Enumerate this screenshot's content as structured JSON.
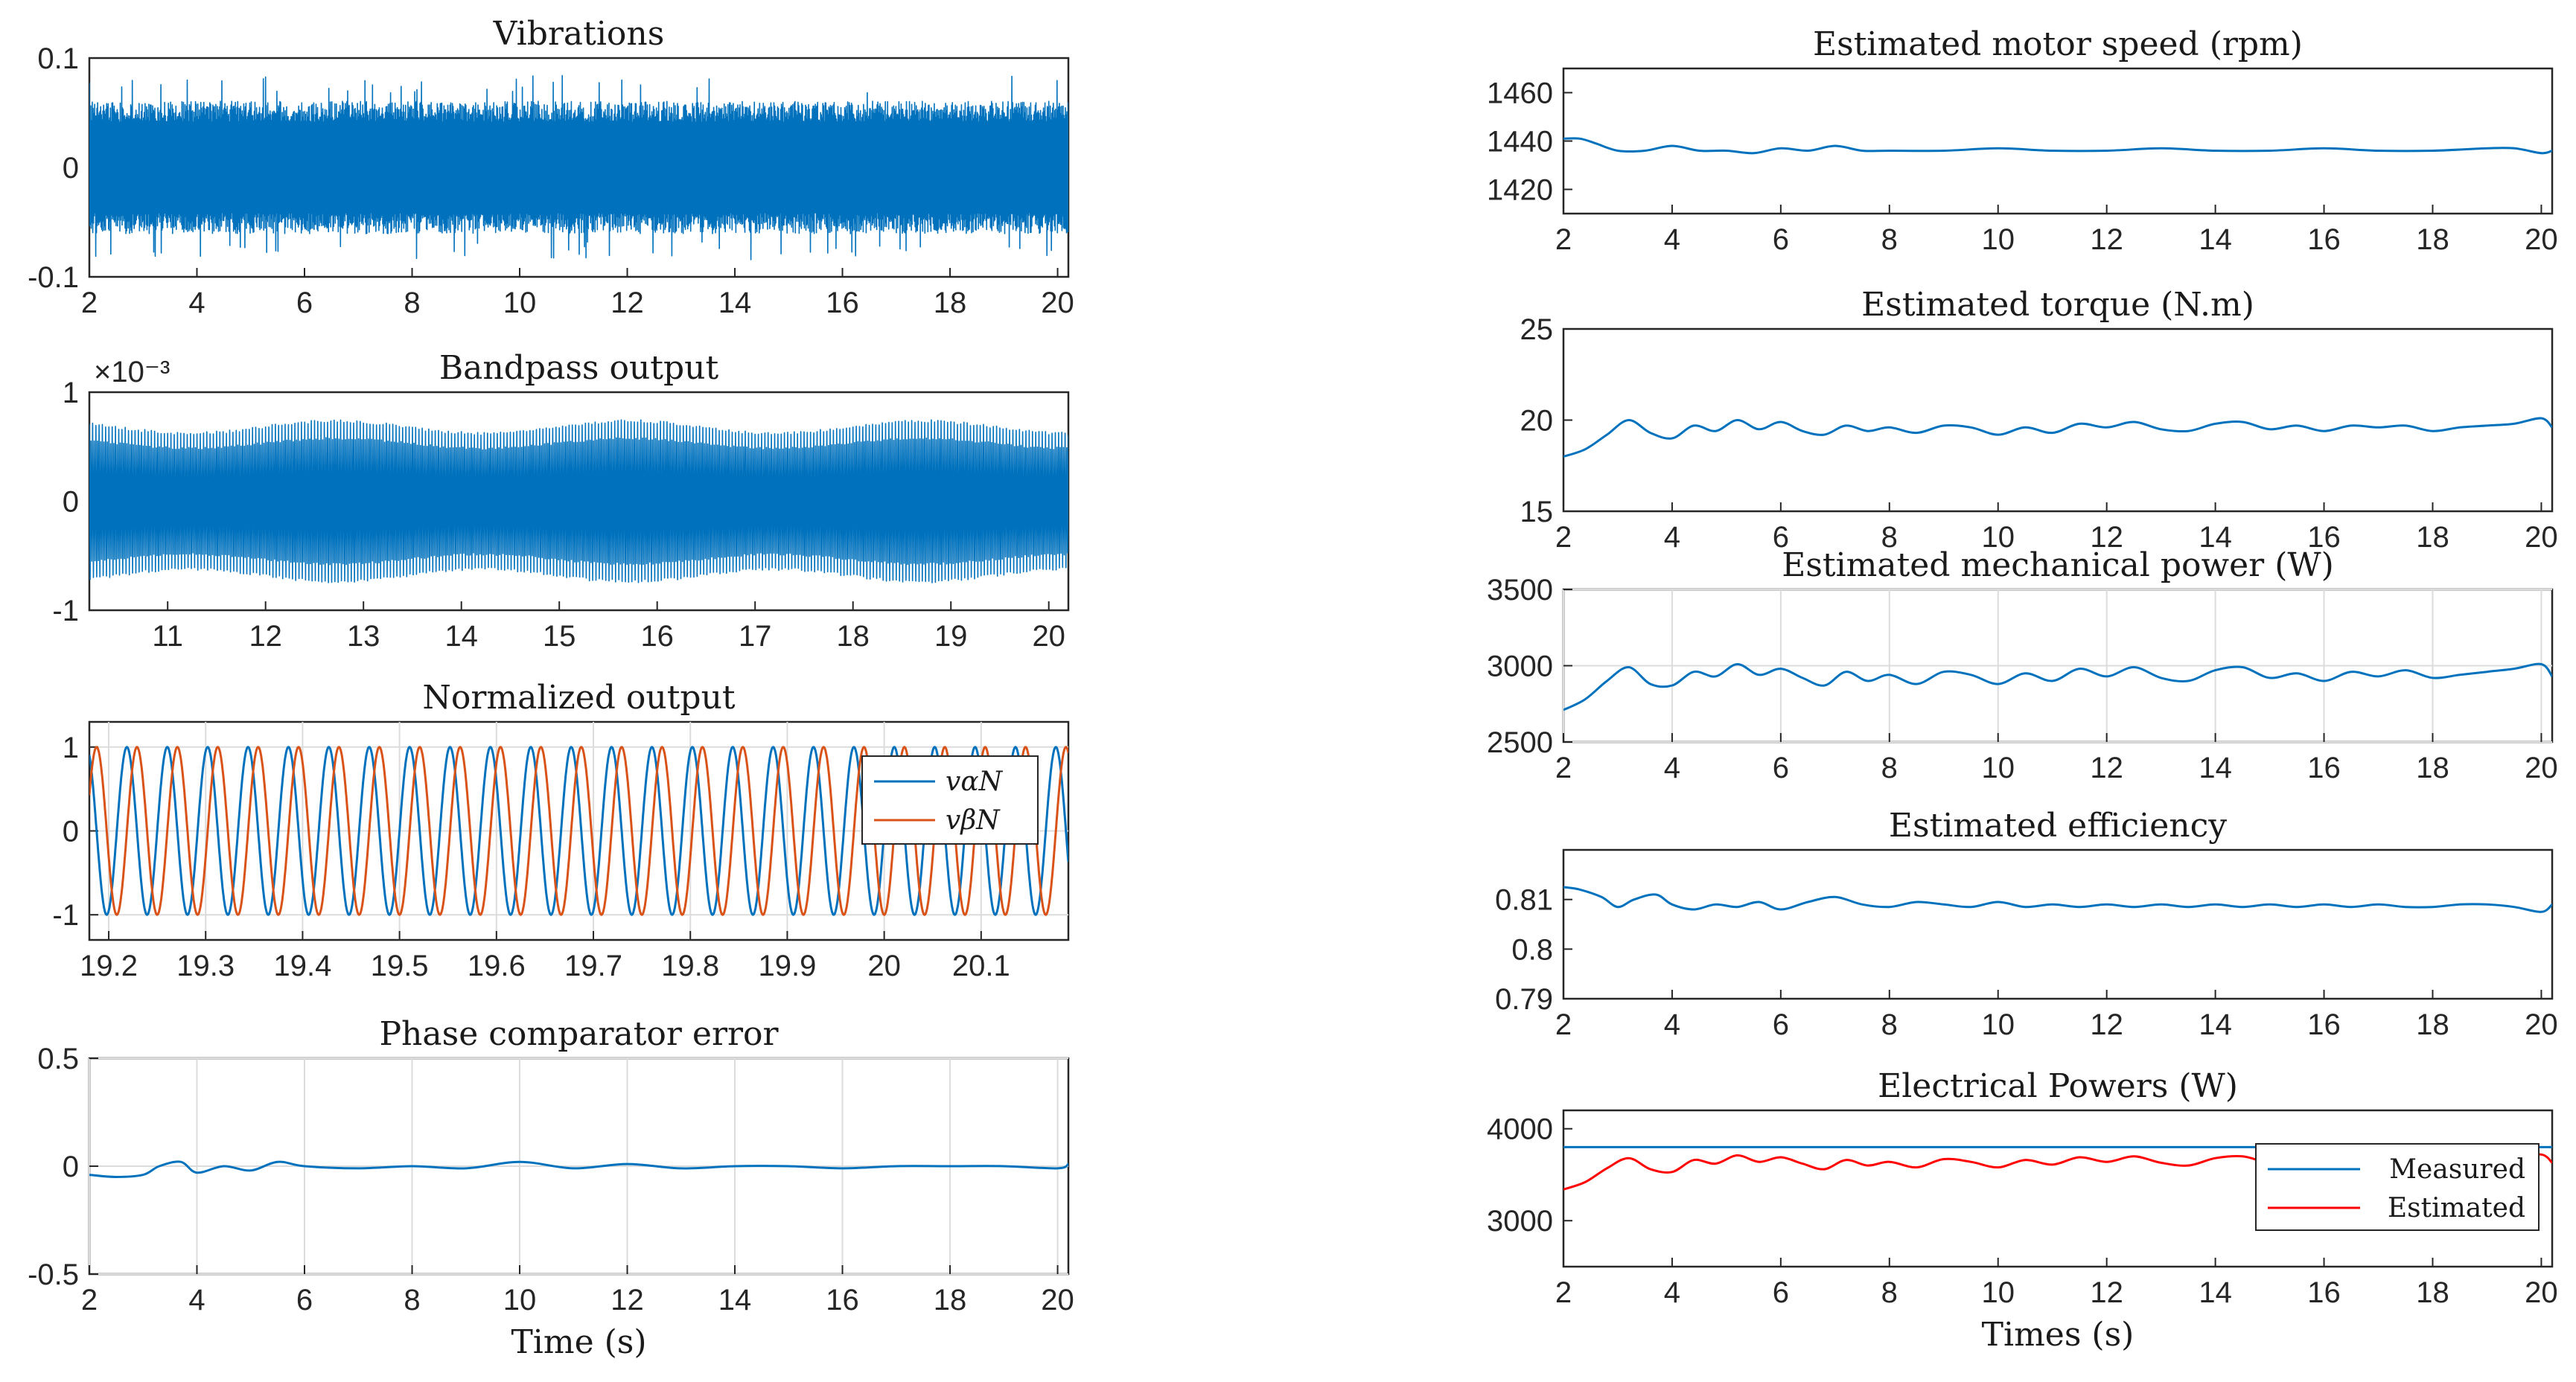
{
  "colors": {
    "blue": "#0072BD",
    "orange": "#D95319",
    "red": "#FF0000",
    "axis": "#262626",
    "grid": "#dcdcdc"
  },
  "chart_data": [
    {
      "id": "vibrations",
      "type": "line",
      "title": "Vibrations",
      "xlabel": "",
      "ylabel": "",
      "xlim": [
        2,
        20.2
      ],
      "ylim": [
        -0.1,
        0.1
      ],
      "xticks": [
        "2",
        "4",
        "6",
        "8",
        "10",
        "12",
        "14",
        "16",
        "18",
        "20"
      ],
      "yticks": [
        "0.1",
        "0",
        "-0.1"
      ],
      "grid": false,
      "series": [
        {
          "color": "#0072BD",
          "signal": "dense-noise",
          "amplitude": 0.055,
          "peak_amplitude": 0.085
        }
      ]
    },
    {
      "id": "bandpass",
      "type": "line",
      "title": "Bandpass output",
      "xlabel": "",
      "ylabel": "",
      "y_exponent": "×10⁻³",
      "xlim": [
        10.2,
        20.2
      ],
      "ylim": [
        -1,
        1
      ],
      "xticks": [
        "11",
        "12",
        "13",
        "14",
        "15",
        "16",
        "17",
        "18",
        "19",
        "20"
      ],
      "yticks": [
        "1",
        "0",
        "-1"
      ],
      "grid": false,
      "series": [
        {
          "color": "#0072BD",
          "signal": "dense-oscillation",
          "amplitude": 0.72
        }
      ]
    },
    {
      "id": "normalized",
      "type": "line",
      "title": "Normalized output",
      "xlabel": "",
      "ylabel": "",
      "xlim": [
        19.18,
        20.19
      ],
      "ylim": [
        -1.3,
        1.3
      ],
      "xticks": [
        "19.2",
        "19.3",
        "19.4",
        "19.5",
        "19.6",
        "19.7",
        "19.8",
        "19.9",
        "20",
        "20.1"
      ],
      "yticks": [
        "1",
        "0",
        "-1"
      ],
      "grid": true,
      "legend": "top-right",
      "series": [
        {
          "name": "vαN",
          "color": "#0072BD",
          "signal": "sine",
          "frequency_hz": 24,
          "phase": 0
        },
        {
          "name": "vβN",
          "color": "#D95319",
          "signal": "sine",
          "frequency_hz": 24,
          "phase": -1.5708
        }
      ]
    },
    {
      "id": "phase_error",
      "type": "line",
      "title": "Phase comparator error",
      "xlabel": "Time (s)",
      "ylabel": "",
      "xlim": [
        2,
        20.2
      ],
      "ylim": [
        -0.5,
        0.5
      ],
      "xticks": [
        "2",
        "4",
        "6",
        "8",
        "10",
        "12",
        "14",
        "16",
        "18",
        "20"
      ],
      "yticks": [
        "0.5",
        "0",
        "-0.5"
      ],
      "grid": true,
      "series": [
        {
          "color": "#0072BD",
          "x": [
            2,
            2.5,
            3,
            3.3,
            3.7,
            4,
            4.5,
            5,
            5.5,
            6,
            7,
            8,
            9,
            10,
            11,
            12,
            13,
            14,
            15,
            16,
            17,
            18,
            19,
            20,
            20.2
          ],
          "y": [
            -0.04,
            -0.05,
            -0.04,
            0.0,
            0.02,
            -0.03,
            0.0,
            -0.02,
            0.02,
            0.0,
            -0.01,
            0.0,
            -0.01,
            0.02,
            -0.01,
            0.01,
            -0.01,
            0.0,
            0.0,
            -0.01,
            0.0,
            0.0,
            0.0,
            -0.01,
            0.01
          ]
        }
      ]
    },
    {
      "id": "speed",
      "type": "line",
      "title": "Estimated motor speed (rpm)",
      "xlabel": "",
      "ylabel": "",
      "xlim": [
        2,
        20.2
      ],
      "ylim": [
        1410,
        1470
      ],
      "xticks": [
        "2",
        "4",
        "6",
        "8",
        "10",
        "12",
        "14",
        "16",
        "18",
        "20"
      ],
      "yticks": [
        "1460",
        "1440",
        "1420"
      ],
      "grid": false,
      "series": [
        {
          "color": "#0072BD",
          "x": [
            2,
            2.3,
            2.6,
            3,
            3.5,
            4,
            4.5,
            5,
            5.5,
            6,
            6.5,
            7,
            7.5,
            8,
            9,
            10,
            11,
            12,
            13,
            14,
            15,
            16,
            17,
            18,
            19,
            19.5,
            20,
            20.2
          ],
          "y": [
            1441,
            1441,
            1439,
            1436,
            1436,
            1438,
            1436,
            1436,
            1435,
            1437,
            1436,
            1438,
            1436,
            1436,
            1436,
            1437,
            1436,
            1436,
            1437,
            1436,
            1436,
            1437,
            1436,
            1436,
            1437,
            1437,
            1435,
            1436
          ]
        }
      ]
    },
    {
      "id": "torque",
      "type": "line",
      "title": "Estimated torque (N.m)",
      "xlabel": "",
      "ylabel": "",
      "xlim": [
        2,
        20.2
      ],
      "ylim": [
        15,
        25
      ],
      "xticks": [
        "2",
        "4",
        "6",
        "8",
        "10",
        "12",
        "14",
        "16",
        "18",
        "20"
      ],
      "yticks": [
        "25",
        "20",
        "15"
      ],
      "grid": false,
      "series": [
        {
          "color": "#0072BD",
          "x": [
            2,
            2.4,
            2.8,
            3.2,
            3.6,
            4,
            4.4,
            4.8,
            5.2,
            5.6,
            6,
            6.4,
            6.8,
            7.2,
            7.6,
            8,
            8.5,
            9,
            9.5,
            10,
            10.5,
            11,
            11.5,
            12,
            12.5,
            13,
            13.5,
            14,
            14.5,
            15,
            15.5,
            16,
            16.5,
            17,
            17.5,
            18,
            18.5,
            19,
            19.5,
            20,
            20.2
          ],
          "y": [
            18.0,
            18.4,
            19.2,
            20.0,
            19.3,
            19.0,
            19.7,
            19.4,
            20.0,
            19.5,
            19.9,
            19.4,
            19.2,
            19.7,
            19.4,
            19.6,
            19.3,
            19.7,
            19.6,
            19.2,
            19.6,
            19.3,
            19.8,
            19.6,
            19.9,
            19.5,
            19.4,
            19.8,
            19.9,
            19.5,
            19.7,
            19.4,
            19.7,
            19.6,
            19.7,
            19.4,
            19.6,
            19.7,
            19.8,
            20.1,
            19.6
          ]
        }
      ]
    },
    {
      "id": "mech_power",
      "type": "line",
      "title": "Estimated mechanical power (W)",
      "xlabel": "",
      "ylabel": "",
      "xlim": [
        2,
        20.2
      ],
      "ylim": [
        2500,
        3500
      ],
      "xticks": [
        "2",
        "4",
        "6",
        "8",
        "10",
        "12",
        "14",
        "16",
        "18",
        "20"
      ],
      "yticks": [
        "3500",
        "3000",
        "2500"
      ],
      "grid": true,
      "series": [
        {
          "color": "#0072BD",
          "x": [
            2,
            2.4,
            2.8,
            3.2,
            3.6,
            4,
            4.4,
            4.8,
            5.2,
            5.6,
            6,
            6.4,
            6.8,
            7.2,
            7.6,
            8,
            8.5,
            9,
            9.5,
            10,
            10.5,
            11,
            11.5,
            12,
            12.5,
            13,
            13.5,
            14,
            14.5,
            15,
            15.5,
            16,
            16.5,
            17,
            17.5,
            18,
            18.5,
            19,
            19.5,
            20,
            20.2
          ],
          "y": [
            2710,
            2780,
            2900,
            2990,
            2880,
            2870,
            2960,
            2930,
            3010,
            2940,
            2980,
            2920,
            2870,
            2960,
            2900,
            2940,
            2880,
            2960,
            2940,
            2880,
            2950,
            2900,
            2980,
            2930,
            2990,
            2920,
            2900,
            2970,
            2990,
            2920,
            2950,
            2900,
            2960,
            2930,
            2970,
            2920,
            2940,
            2960,
            2980,
            3010,
            2930
          ]
        }
      ]
    },
    {
      "id": "efficiency",
      "type": "line",
      "title": "Estimated efficiency",
      "xlabel": "",
      "ylabel": "",
      "xlim": [
        2,
        20.2
      ],
      "ylim": [
        0.79,
        0.82
      ],
      "xticks": [
        "2",
        "4",
        "6",
        "8",
        "10",
        "12",
        "14",
        "16",
        "18",
        "20"
      ],
      "yticks": [
        "0.81",
        "0.8",
        "0.79"
      ],
      "grid": false,
      "series": [
        {
          "color": "#0072BD",
          "x": [
            2,
            2.3,
            2.7,
            3,
            3.3,
            3.7,
            4,
            4.4,
            4.8,
            5.2,
            5.6,
            6,
            6.5,
            7,
            7.5,
            8,
            8.5,
            9,
            9.5,
            10,
            10.5,
            11,
            11.5,
            12,
            12.5,
            13,
            13.5,
            14,
            14.5,
            15,
            15.5,
            16,
            16.5,
            17,
            17.5,
            18,
            18.5,
            19,
            19.5,
            20,
            20.2
          ],
          "y": [
            0.8125,
            0.812,
            0.8105,
            0.8085,
            0.81,
            0.811,
            0.809,
            0.808,
            0.809,
            0.8085,
            0.8095,
            0.808,
            0.8095,
            0.8105,
            0.809,
            0.8085,
            0.8095,
            0.809,
            0.8085,
            0.8095,
            0.8085,
            0.809,
            0.8085,
            0.809,
            0.8085,
            0.809,
            0.8085,
            0.809,
            0.8085,
            0.809,
            0.8085,
            0.809,
            0.8085,
            0.809,
            0.8085,
            0.8085,
            0.809,
            0.809,
            0.8085,
            0.8075,
            0.809
          ]
        }
      ]
    },
    {
      "id": "electrical",
      "type": "line",
      "title": "Electrical Powers (W)",
      "xlabel": "Times (s)",
      "ylabel": "",
      "xlim": [
        2,
        20.2
      ],
      "ylim": [
        2500,
        4200
      ],
      "xticks": [
        "2",
        "4",
        "6",
        "8",
        "10",
        "12",
        "14",
        "16",
        "18",
        "20"
      ],
      "yticks": [
        "4000",
        "3000"
      ],
      "grid": false,
      "legend": "top-right",
      "series": [
        {
          "name": "Measured",
          "color": "#0072BD",
          "x": [
            2,
            20.2
          ],
          "y": [
            3800,
            3800
          ]
        },
        {
          "name": "Estimated",
          "color": "#FF0000",
          "x": [
            2,
            2.4,
            2.8,
            3.2,
            3.6,
            4,
            4.4,
            4.8,
            5.2,
            5.6,
            6,
            6.4,
            6.8,
            7.2,
            7.6,
            8,
            8.5,
            9,
            9.5,
            10,
            10.5,
            11,
            11.5,
            12,
            12.5,
            13,
            13.5,
            14,
            14.5,
            15,
            15.5,
            16,
            16.5,
            17,
            17.5,
            18,
            18.5,
            19,
            19.5,
            20,
            20.2
          ],
          "y": [
            3340,
            3420,
            3570,
            3680,
            3560,
            3530,
            3660,
            3620,
            3710,
            3640,
            3690,
            3620,
            3560,
            3660,
            3600,
            3640,
            3580,
            3670,
            3640,
            3580,
            3660,
            3610,
            3690,
            3640,
            3700,
            3630,
            3600,
            3680,
            3700,
            3630,
            3660,
            3610,
            3670,
            3640,
            3680,
            3630,
            3650,
            3670,
            3690,
            3720,
            3630
          ]
        }
      ]
    }
  ]
}
